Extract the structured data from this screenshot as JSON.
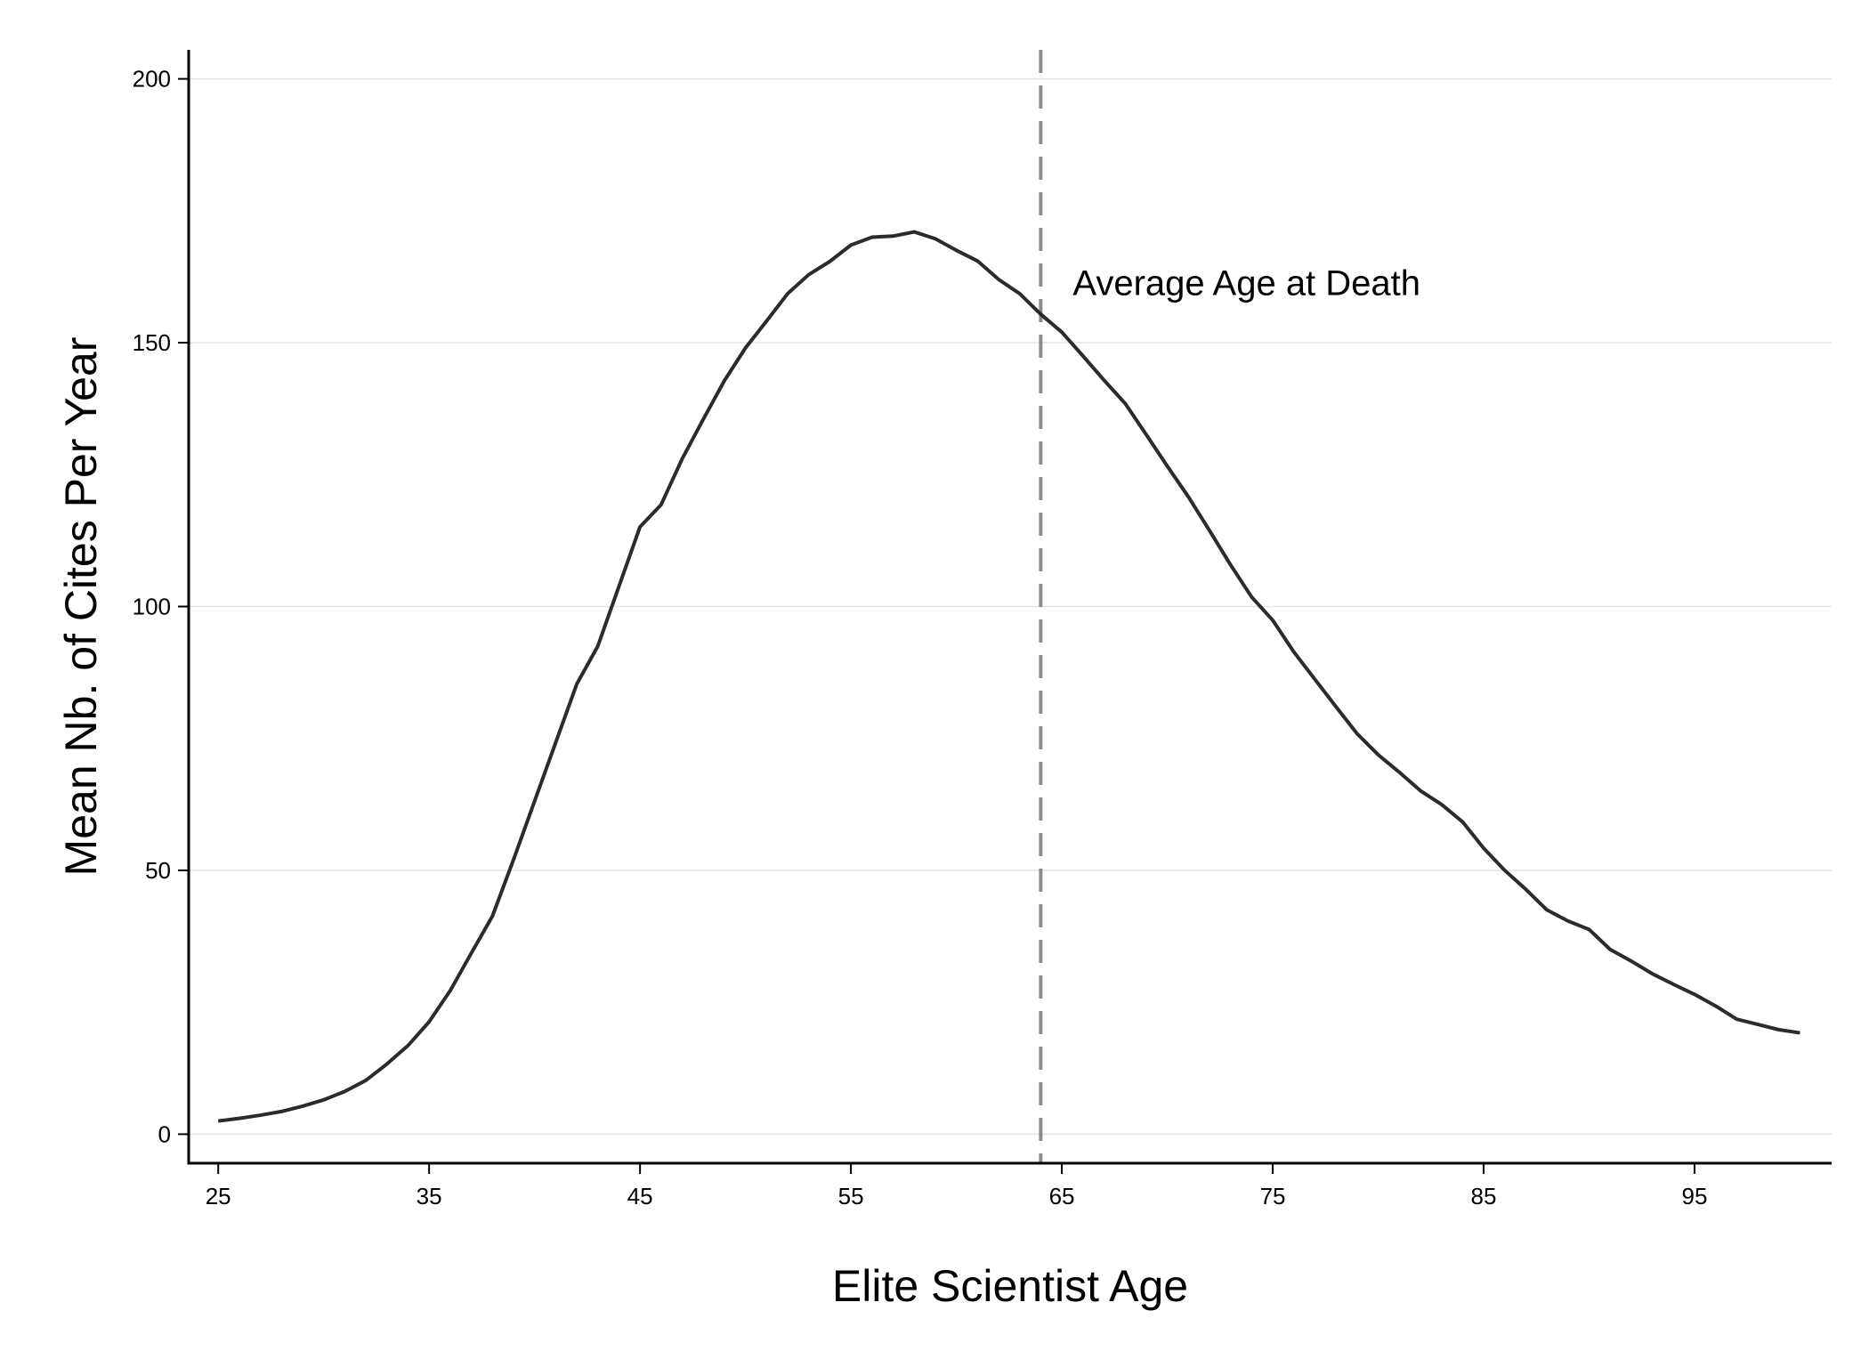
{
  "chart_data": {
    "type": "line",
    "xlabel": "Elite Scientist Age",
    "ylabel": "Mean Nb. of Cites Per Year",
    "xlim": [
      23.6,
      101.5
    ],
    "ylim": [
      -5.5,
      205.5
    ],
    "xticks": [
      25,
      35,
      45,
      55,
      65,
      75,
      85,
      95
    ],
    "yticks": [
      0,
      50,
      100,
      150,
      200
    ],
    "grid": "horizontal",
    "colors": {
      "line": "#2b2b2b",
      "reference": "#8c8c8c",
      "grid": "#e3e3e3",
      "axis": "#000000"
    },
    "reference_line": {
      "x": 64,
      "label": "Average Age at Death",
      "style": "dashed"
    },
    "series": [
      {
        "x": [
          25,
          26,
          27,
          28,
          29,
          30,
          31,
          32,
          33,
          34,
          35,
          36,
          37,
          38,
          39,
          40,
          41,
          42,
          43,
          44,
          45,
          46,
          47,
          48,
          49,
          50,
          51,
          52,
          53,
          54,
          55,
          56,
          57,
          58,
          59,
          60,
          61,
          62,
          63,
          64,
          65,
          66,
          67,
          68,
          69,
          70,
          71,
          72,
          73,
          74,
          75,
          76,
          77,
          78,
          79,
          80,
          81,
          82,
          83,
          84,
          85,
          86,
          87,
          88,
          89,
          90,
          91,
          92,
          93,
          94,
          95,
          96,
          97,
          98,
          99,
          100
        ],
        "values": [
          2.5,
          3.0,
          3.6,
          4.3,
          5.3,
          6.5,
          8.1,
          10.2,
          13.3,
          16.8,
          21.3,
          27.2,
          34.3,
          41.3,
          52.0,
          63.1,
          74.2,
          85.3,
          92.5,
          103.8,
          115.1,
          119.3,
          128.0,
          135.5,
          142.8,
          149.0,
          154.1,
          159.3,
          162.9,
          165.4,
          168.5,
          170.0,
          170.2,
          171.0,
          169.7,
          167.5,
          165.5,
          162.0,
          159.3,
          155.4,
          152.0,
          147.5,
          142.9,
          138.5,
          132.6,
          126.6,
          120.8,
          114.4,
          107.9,
          101.8,
          97.4,
          91.4,
          86.2,
          81.0,
          75.9,
          71.9,
          68.6,
          65.1,
          62.5,
          59.2,
          54.2,
          50.0,
          46.4,
          42.5,
          40.4,
          38.8,
          35.0,
          32.8,
          30.4,
          28.4,
          26.5,
          24.3,
          21.8,
          20.8,
          19.8,
          19.2
        ]
      }
    ]
  }
}
